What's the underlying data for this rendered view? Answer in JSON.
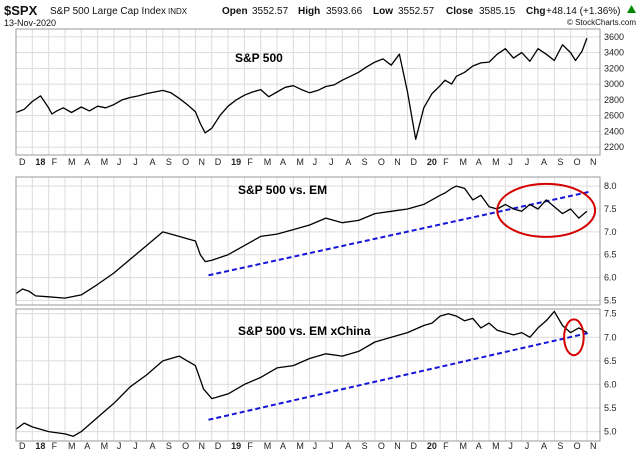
{
  "header": {
    "symbol": "$SPX",
    "name": "S&P 500 Large Cap Index",
    "exchange": "INDX",
    "date": "13-Nov-2020",
    "open_label": "Open",
    "open": "3552.57",
    "high_label": "High",
    "high": "3593.66",
    "low_label": "Low",
    "low": "3552.57",
    "close_label": "Close",
    "close": "3585.15",
    "chg_label": "Chg",
    "chg": "+48.14 (+1.36%)",
    "chg_arrow": "triangle-up-icon",
    "watermark": "© StockCharts.com"
  },
  "colors": {
    "price_line": "#000000",
    "trendline": "#1515d9",
    "ellipse": "#d40000",
    "grid": "#dcdcdc",
    "panel_border": "#9a9a9a",
    "chg_positive": "#008a00"
  },
  "chart_data": [
    {
      "type": "line",
      "title": "S&P 500",
      "x_start": "2017-12",
      "x_end": "2020-11",
      "ylim": [
        2100,
        3700
      ],
      "yticks": [
        2200,
        2400,
        2600,
        2800,
        3000,
        3200,
        3400,
        3600
      ],
      "grid": true,
      "series": [
        {
          "x": [
            0,
            0.5,
            1,
            1.5,
            2,
            2.2,
            2.5,
            2.9,
            3.4,
            4,
            4.5,
            5,
            5.5,
            6,
            6.5,
            7,
            7.5,
            8,
            8.5,
            9,
            9.5,
            10,
            10.5,
            11,
            11.3,
            11.6,
            12,
            12.5,
            13,
            13.5,
            14,
            14.5,
            15,
            15.5,
            16,
            16.5,
            17,
            17.5,
            18,
            18.5,
            19,
            19.5,
            20,
            20.5,
            21,
            21.5,
            22,
            22.5,
            23,
            23.5,
            24,
            24.5,
            25,
            25.5,
            26,
            26.3,
            26.7,
            27,
            27.5,
            28,
            28.5,
            29,
            29.5,
            30,
            30.5,
            31,
            31.5,
            32,
            32.5,
            33,
            33.5,
            34,
            34.3,
            34.7,
            35
          ],
          "values": [
            2640,
            2680,
            2780,
            2850,
            2700,
            2620,
            2660,
            2700,
            2640,
            2710,
            2660,
            2720,
            2700,
            2740,
            2800,
            2830,
            2850,
            2880,
            2900,
            2920,
            2890,
            2820,
            2740,
            2650,
            2500,
            2380,
            2440,
            2600,
            2720,
            2800,
            2860,
            2900,
            2930,
            2840,
            2900,
            2960,
            2980,
            2930,
            2890,
            2920,
            2970,
            2990,
            3050,
            3100,
            3150,
            3220,
            3280,
            3320,
            3240,
            3380,
            2900,
            2300,
            2700,
            2880,
            2980,
            3050,
            3000,
            3100,
            3150,
            3230,
            3270,
            3280,
            3380,
            3450,
            3330,
            3400,
            3290,
            3450,
            3380,
            3300,
            3500,
            3400,
            3300,
            3420,
            3585
          ]
        }
      ]
    },
    {
      "type": "line",
      "title": "S&P 500 vs. EM",
      "x_start": "2017-12",
      "x_end": "2020-11",
      "ylim": [
        5.4,
        8.2
      ],
      "yticks": [
        5.5,
        6.0,
        6.5,
        7.0,
        7.5,
        8.0
      ],
      "grid": true,
      "series": [
        {
          "x": [
            0,
            0.4,
            0.8,
            1.2,
            2,
            3,
            4,
            5,
            6,
            7,
            8,
            9,
            9.5,
            10,
            10.5,
            11,
            11.3,
            11.6,
            12,
            13,
            14,
            15,
            16,
            17,
            18,
            19,
            20,
            21,
            22,
            23,
            24,
            25,
            26,
            26.3,
            26.7,
            27,
            27.5,
            28,
            28.5,
            29,
            29.5,
            30,
            30.5,
            31,
            31.5,
            32,
            32.5,
            33,
            33.5,
            34,
            34.5,
            35
          ],
          "values": [
            5.65,
            5.75,
            5.7,
            5.6,
            5.58,
            5.55,
            5.62,
            5.85,
            6.1,
            6.4,
            6.7,
            7.0,
            6.95,
            6.9,
            6.85,
            6.8,
            6.5,
            6.35,
            6.38,
            6.5,
            6.7,
            6.9,
            6.95,
            7.05,
            7.15,
            7.3,
            7.2,
            7.25,
            7.4,
            7.45,
            7.5,
            7.6,
            7.8,
            7.85,
            7.95,
            8.0,
            7.95,
            7.7,
            7.8,
            7.55,
            7.5,
            7.6,
            7.5,
            7.45,
            7.6,
            7.5,
            7.7,
            7.55,
            7.4,
            7.5,
            7.3,
            7.45
          ]
        }
      ],
      "trendline": {
        "x": [
          11.8,
          35.2
        ],
        "values": [
          6.05,
          7.88
        ]
      },
      "ellipse": {
        "x_center": 32.5,
        "y_center": 7.47,
        "x_radius": 3.0,
        "y_radius": 0.58
      }
    },
    {
      "type": "line",
      "title": "S&P 500 vs. EM xChina",
      "x_start": "2017-12",
      "x_end": "2020-11",
      "ylim": [
        4.8,
        7.6
      ],
      "yticks": [
        5.0,
        5.5,
        6.0,
        6.5,
        7.0,
        7.5
      ],
      "grid": true,
      "series": [
        {
          "x": [
            0,
            0.5,
            1,
            1.5,
            2,
            3,
            3.5,
            4,
            5,
            6,
            7,
            8,
            9,
            10,
            10.5,
            11,
            11.5,
            12,
            13,
            14,
            15,
            16,
            17,
            18,
            19,
            20,
            21,
            22,
            23,
            24,
            25,
            25.5,
            26,
            26.5,
            27,
            27.5,
            28,
            28.5,
            29,
            29.5,
            30,
            30.5,
            31,
            31.5,
            32,
            32.5,
            33,
            33.5,
            34,
            34.5,
            35
          ],
          "values": [
            5.05,
            5.18,
            5.1,
            5.05,
            5.0,
            4.95,
            4.9,
            5.0,
            5.3,
            5.6,
            5.95,
            6.2,
            6.5,
            6.6,
            6.5,
            6.4,
            5.9,
            5.7,
            5.8,
            6.0,
            6.15,
            6.35,
            6.4,
            6.55,
            6.65,
            6.6,
            6.7,
            6.9,
            7.0,
            7.1,
            7.25,
            7.3,
            7.45,
            7.5,
            7.45,
            7.35,
            7.4,
            7.2,
            7.3,
            7.15,
            7.1,
            7.05,
            7.1,
            7.0,
            7.2,
            7.35,
            7.55,
            7.25,
            7.1,
            7.2,
            7.1
          ]
        }
      ],
      "trendline": {
        "x": [
          11.8,
          35.2
        ],
        "values": [
          5.25,
          7.1
        ]
      },
      "ellipse": {
        "x_center": 34.2,
        "y_center": 7.0,
        "x_radius": 0.6,
        "y_radius": 0.38
      }
    }
  ],
  "x_axis": {
    "ticks": [
      {
        "label": "D",
        "x": 0
      },
      {
        "label": "18",
        "x": 1,
        "bold": true
      },
      {
        "label": "F",
        "x": 2
      },
      {
        "label": "M",
        "x": 3
      },
      {
        "label": "A",
        "x": 4
      },
      {
        "label": "M",
        "x": 5
      },
      {
        "label": "J",
        "x": 6
      },
      {
        "label": "J",
        "x": 7
      },
      {
        "label": "A",
        "x": 8
      },
      {
        "label": "S",
        "x": 9
      },
      {
        "label": "O",
        "x": 10
      },
      {
        "label": "N",
        "x": 11
      },
      {
        "label": "D",
        "x": 12
      },
      {
        "label": "19",
        "x": 13,
        "bold": true
      },
      {
        "label": "F",
        "x": 14
      },
      {
        "label": "M",
        "x": 15
      },
      {
        "label": "A",
        "x": 16
      },
      {
        "label": "M",
        "x": 17
      },
      {
        "label": "J",
        "x": 18
      },
      {
        "label": "J",
        "x": 19
      },
      {
        "label": "A",
        "x": 20
      },
      {
        "label": "S",
        "x": 21
      },
      {
        "label": "O",
        "x": 22
      },
      {
        "label": "N",
        "x": 23
      },
      {
        "label": "D",
        "x": 24
      },
      {
        "label": "20",
        "x": 25,
        "bold": true
      },
      {
        "label": "F",
        "x": 26
      },
      {
        "label": "M",
        "x": 27
      },
      {
        "label": "A",
        "x": 28
      },
      {
        "label": "M",
        "x": 29
      },
      {
        "label": "J",
        "x": 30
      },
      {
        "label": "J",
        "x": 31
      },
      {
        "label": "A",
        "x": 32
      },
      {
        "label": "S",
        "x": 33
      },
      {
        "label": "O",
        "x": 34
      },
      {
        "label": "N",
        "x": 35
      }
    ]
  }
}
